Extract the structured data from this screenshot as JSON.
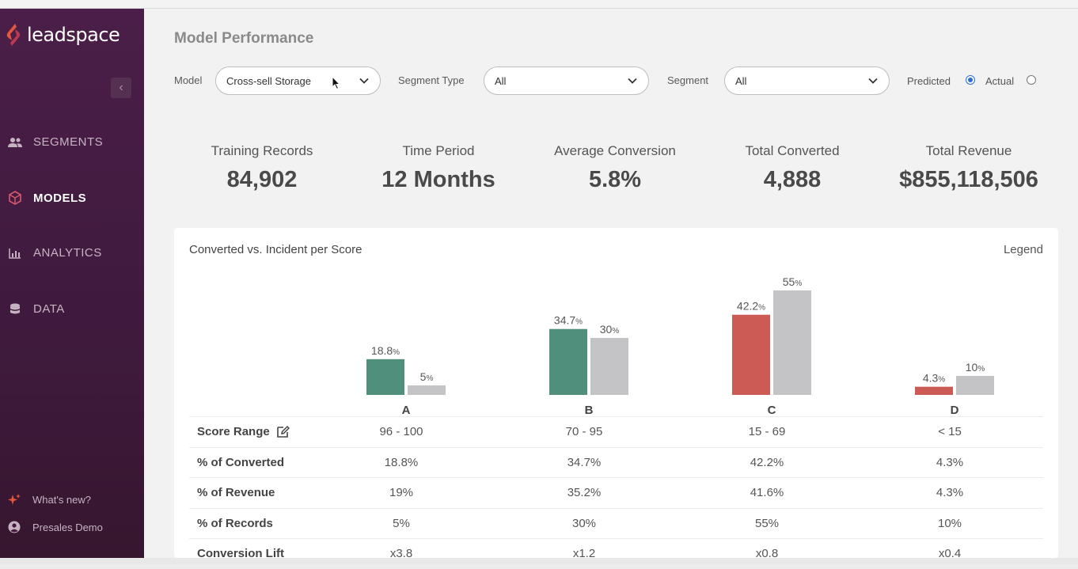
{
  "app": {
    "brand": "leadspace",
    "brand_color": "#e4573d",
    "sidebar_color": "#451c43"
  },
  "sidebar": {
    "collapse_icon": "chevron-left-icon",
    "items": [
      {
        "label": "SEGMENTS",
        "icon": "users-icon",
        "active": false
      },
      {
        "label": "MODELS",
        "icon": "cube-icon",
        "active": true
      },
      {
        "label": "ANALYTICS",
        "icon": "bar-chart-icon",
        "active": false
      },
      {
        "label": "DATA",
        "icon": "database-icon",
        "active": false
      }
    ],
    "footer": [
      {
        "label": "What's new?",
        "icon": "sparkle-icon"
      },
      {
        "label": "Presales Demo",
        "icon": "user-avatar-icon"
      }
    ]
  },
  "page": {
    "title": "Model Performance"
  },
  "filters": {
    "model_label": "Model",
    "model_value": "Cross-sell Storage",
    "segment_type_label": "Segment Type",
    "segment_type_value": "All",
    "segment_label": "Segment",
    "segment_value": "All",
    "predicted_label": "Predicted",
    "actual_label": "Actual",
    "selected_mode": "Predicted"
  },
  "kpis": [
    {
      "label": "Training Records",
      "value": "84,902"
    },
    {
      "label": "Time Period",
      "value": "12 Months"
    },
    {
      "label": "Average Conversion",
      "value": "5.8%"
    },
    {
      "label": "Total Converted",
      "value": "4,888"
    },
    {
      "label": "Total Revenue",
      "value": "$855,118,506"
    }
  ],
  "chart_data": {
    "type": "bar",
    "title": "Converted vs. Incident per Score",
    "legend_label": "Legend",
    "categories": [
      "A",
      "B",
      "C",
      "D"
    ],
    "series": [
      {
        "name": "",
        "values": [
          18.8,
          34.7,
          42.2,
          4.3
        ],
        "labels": [
          "18.8",
          "34.7",
          "42.2",
          "4.3"
        ],
        "colors": [
          "#4f8f7c",
          "#4f8f7c",
          "#cc5a55",
          "#cc5a55"
        ]
      },
      {
        "name": "",
        "values": [
          5,
          30,
          55,
          10
        ],
        "labels": [
          "5",
          "30",
          "55",
          "10"
        ],
        "colors": [
          "#c4c3c5",
          "#c4c3c5",
          "#c4c3c5",
          "#c4c3c5"
        ]
      }
    ],
    "unit": "%",
    "ylim": [
      0,
      55
    ]
  },
  "table": {
    "rows": [
      {
        "label": "Score Range",
        "values": [
          "96 - 100",
          "70 - 95",
          "15 - 69",
          "< 15"
        ],
        "edit_icon": true
      },
      {
        "label": "% of Converted",
        "values": [
          "18.8%",
          "34.7%",
          "42.2%",
          "4.3%"
        ]
      },
      {
        "label": "% of Revenue",
        "values": [
          "19%",
          "35.2%",
          "41.6%",
          "4.3%"
        ]
      },
      {
        "label": "% of Records",
        "values": [
          "5%",
          "30%",
          "55%",
          "10%"
        ]
      },
      {
        "label": "Conversion Lift",
        "values": [
          "x3.8",
          "x1.2",
          "x0.8",
          "x0.4"
        ]
      }
    ]
  }
}
